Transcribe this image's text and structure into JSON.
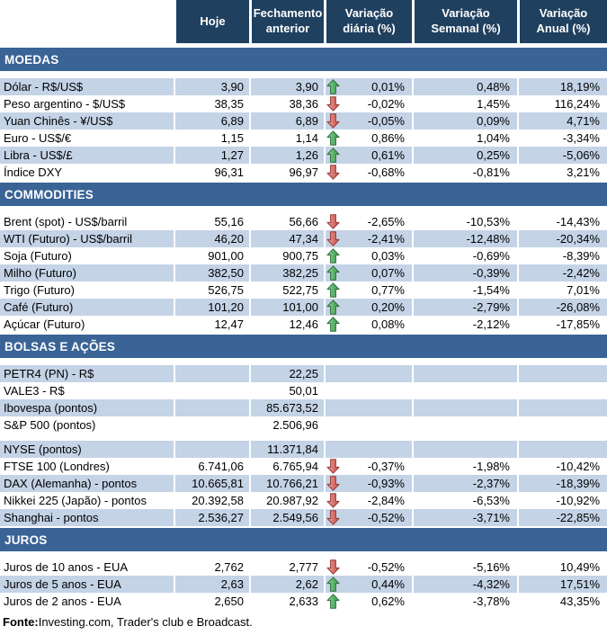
{
  "header": {
    "columns": [
      "Hoje",
      "Fechamento anterior",
      "Variação diária (%)",
      "Variação Semanal (%)",
      "Variação Anual (%)"
    ]
  },
  "colors": {
    "header_bg": "#20405F",
    "band_bg": "#3A6396",
    "shaded_row_bg": "#C4D3E6",
    "up_arrow_fill": "#4CA85C",
    "up_arrow_stroke": "#2D6A39",
    "down_arrow_fill": "#CC5A52",
    "down_arrow_stroke": "#943634"
  },
  "sections": [
    {
      "title": "MOEDAS",
      "rows": [
        {
          "label": "Dólar - R$/US$",
          "hoje": "3,90",
          "fechamento": "3,90",
          "arrow": "up",
          "var_diaria": "0,01%",
          "var_semanal": "0,48%",
          "var_anual": "18,19%",
          "shaded": true
        },
        {
          "label": "Peso argentino - $/US$",
          "hoje": "38,35",
          "fechamento": "38,36",
          "arrow": "down",
          "var_diaria": "-0,02%",
          "var_semanal": "1,45%",
          "var_anual": "116,24%",
          "shaded": false
        },
        {
          "label": "Yuan Chinês - ¥/US$",
          "hoje": "6,89",
          "fechamento": "6,89",
          "arrow": "down",
          "var_diaria": "-0,05%",
          "var_semanal": "0,09%",
          "var_anual": "4,71%",
          "shaded": true
        },
        {
          "label": "Euro - US$/€",
          "hoje": "1,15",
          "fechamento": "1,14",
          "arrow": "up",
          "var_diaria": "0,86%",
          "var_semanal": "1,04%",
          "var_anual": "-3,34%",
          "shaded": false
        },
        {
          "label": "Libra - US$/£",
          "hoje": "1,27",
          "fechamento": "1,26",
          "arrow": "up",
          "var_diaria": "0,61%",
          "var_semanal": "0,25%",
          "var_anual": "-5,06%",
          "shaded": true
        },
        {
          "label": "Índice DXY",
          "hoje": "96,31",
          "fechamento": "96,97",
          "arrow": "down",
          "var_diaria": "-0,68%",
          "var_semanal": "-0,81%",
          "var_anual": "3,21%",
          "shaded": false
        }
      ]
    },
    {
      "title": "COMMODITIES",
      "rows": [
        {
          "label": "Brent (spot) - US$/barril",
          "hoje": "55,16",
          "fechamento": "56,66",
          "arrow": "down",
          "var_diaria": "-2,65%",
          "var_semanal": "-10,53%",
          "var_anual": "-14,43%",
          "shaded": false
        },
        {
          "label": "WTI (Futuro) - US$/barril",
          "hoje": "46,20",
          "fechamento": "47,34",
          "arrow": "down",
          "var_diaria": "-2,41%",
          "var_semanal": "-12,48%",
          "var_anual": "-20,34%",
          "shaded": true
        },
        {
          "label": "Soja (Futuro)",
          "hoje": "901,00",
          "fechamento": "900,75",
          "arrow": "up",
          "var_diaria": "0,03%",
          "var_semanal": "-0,69%",
          "var_anual": "-8,39%",
          "shaded": false
        },
        {
          "label": "Milho (Futuro)",
          "hoje": "382,50",
          "fechamento": "382,25",
          "arrow": "up",
          "var_diaria": "0,07%",
          "var_semanal": "-0,39%",
          "var_anual": "-2,42%",
          "shaded": true
        },
        {
          "label": "Trigo (Futuro)",
          "hoje": "526,75",
          "fechamento": "522,75",
          "arrow": "up",
          "var_diaria": "0,77%",
          "var_semanal": "-1,54%",
          "var_anual": "7,01%",
          "shaded": false
        },
        {
          "label": "Café (Futuro)",
          "hoje": "101,20",
          "fechamento": "101,00",
          "arrow": "up",
          "var_diaria": "0,20%",
          "var_semanal": "-2,79%",
          "var_anual": "-26,08%",
          "shaded": true
        },
        {
          "label": "Açúcar (Futuro)",
          "hoje": "12,47",
          "fechamento": "12,46",
          "arrow": "up",
          "var_diaria": "0,08%",
          "var_semanal": "-2,12%",
          "var_anual": "-17,85%",
          "shaded": false
        }
      ]
    },
    {
      "title": "BOLSAS E AÇÕES",
      "rows": [
        {
          "label": "PETR4 (PN) - R$",
          "hoje": "",
          "fechamento": "22,25",
          "arrow": "",
          "var_diaria": "",
          "var_semanal": "",
          "var_anual": "",
          "shaded": true
        },
        {
          "label": "VALE3 - R$",
          "hoje": "",
          "fechamento": "50,01",
          "arrow": "",
          "var_diaria": "",
          "var_semanal": "",
          "var_anual": "",
          "shaded": false
        },
        {
          "label": "Ibovespa (pontos)",
          "hoje": "",
          "fechamento": "85.673,52",
          "arrow": "",
          "var_diaria": "",
          "var_semanal": "",
          "var_anual": "",
          "shaded": true
        },
        {
          "label": "S&P 500 (pontos)",
          "hoje": "",
          "fechamento": "2.506,96",
          "arrow": "",
          "var_diaria": "",
          "var_semanal": "",
          "var_anual": "",
          "shaded": false
        },
        {
          "label": "NYSE (pontos)",
          "hoje": "",
          "fechamento": "11.371,84",
          "arrow": "",
          "var_diaria": "",
          "var_semanal": "",
          "var_anual": "",
          "shaded": true,
          "spacer_before": true
        },
        {
          "label": "FTSE 100 (Londres)",
          "hoje": "6.741,06",
          "fechamento": "6.765,94",
          "arrow": "down",
          "var_diaria": "-0,37%",
          "var_semanal": "-1,98%",
          "var_anual": "-10,42%",
          "shaded": false
        },
        {
          "label": "DAX (Alemanha) - pontos",
          "hoje": "10.665,81",
          "fechamento": "10.766,21",
          "arrow": "down",
          "var_diaria": "-0,93%",
          "var_semanal": "-2,37%",
          "var_anual": "-18,39%",
          "shaded": true
        },
        {
          "label": "Nikkei 225 (Japão) - pontos",
          "hoje": "20.392,58",
          "fechamento": "20.987,92",
          "arrow": "down",
          "var_diaria": "-2,84%",
          "var_semanal": "-6,53%",
          "var_anual": "-10,92%",
          "shaded": false
        },
        {
          "label": "Shanghai - pontos",
          "hoje": "2.536,27",
          "fechamento": "2.549,56",
          "arrow": "down",
          "var_diaria": "-0,52%",
          "var_semanal": "-3,71%",
          "var_anual": "-22,85%",
          "shaded": true
        }
      ]
    },
    {
      "title": "JUROS",
      "rows": [
        {
          "label": "Juros de 10 anos - EUA",
          "hoje": "2,762",
          "fechamento": "2,777",
          "arrow": "down",
          "var_diaria": "-0,52%",
          "var_semanal": "-5,16%",
          "var_anual": "10,49%",
          "shaded": false
        },
        {
          "label": "Juros de 5 anos - EUA",
          "hoje": "2,63",
          "fechamento": "2,62",
          "arrow": "up",
          "var_diaria": "0,44%",
          "var_semanal": "-4,32%",
          "var_anual": "17,51%",
          "shaded": true
        },
        {
          "label": "Juros de 2 anos - EUA",
          "hoje": "2,650",
          "fechamento": "2,633",
          "arrow": "up",
          "var_diaria": "0,62%",
          "var_semanal": "-3,78%",
          "var_anual": "43,35%",
          "shaded": false
        }
      ]
    }
  ],
  "footer": {
    "label": "Fonte:",
    "text": " Investing.com, Trader's club e Broadcast."
  }
}
